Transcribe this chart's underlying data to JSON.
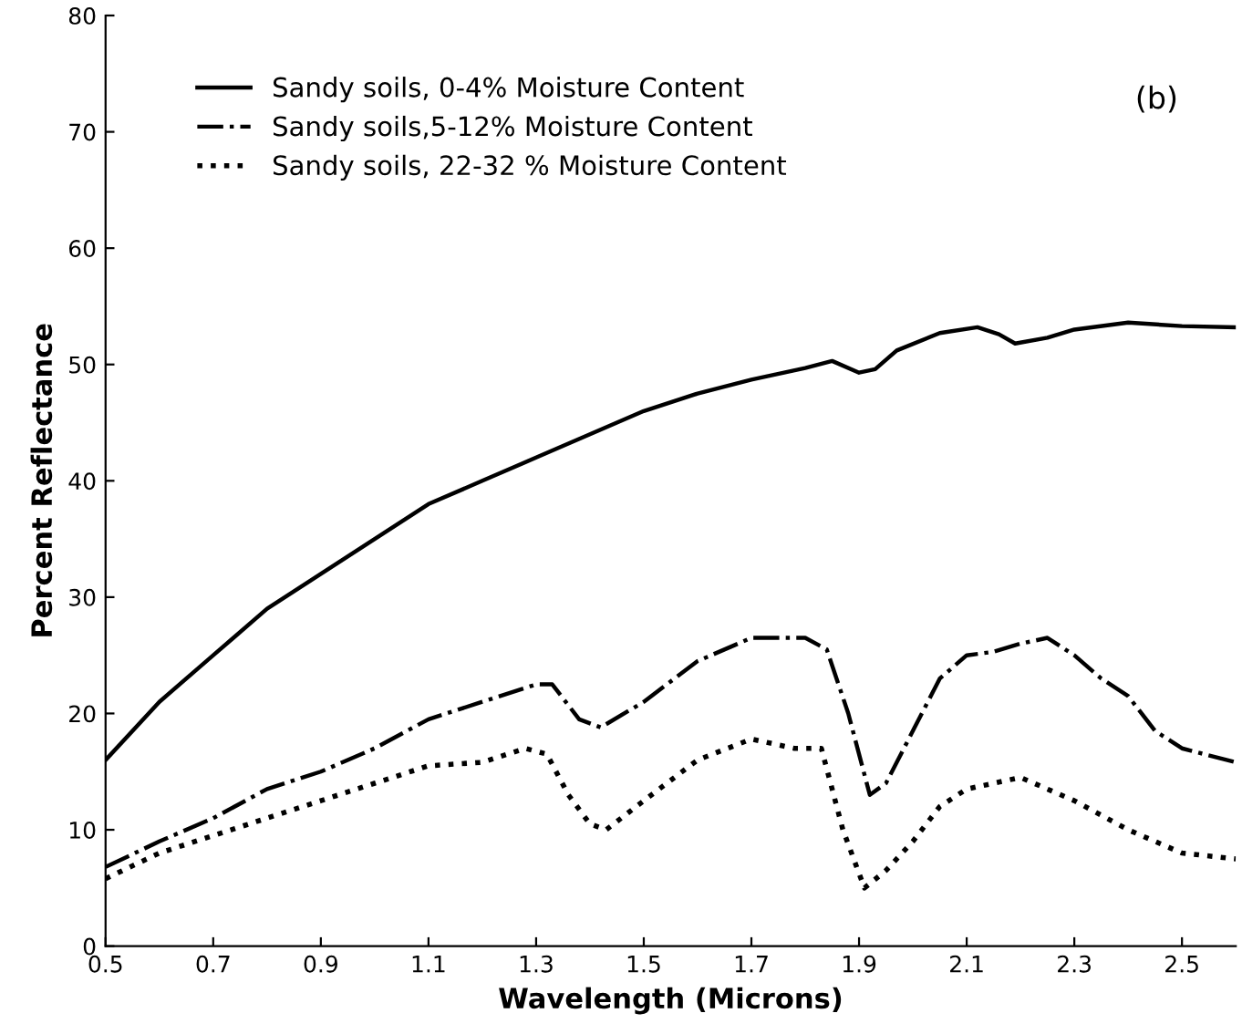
{
  "chart_data": {
    "type": "line",
    "xlabel": "Wavelength (Microns)",
    "ylabel": "Percent Reflectance",
    "annotations": [
      "(b)"
    ],
    "xlim": [
      0.5,
      2.6
    ],
    "xticks": [
      0.5,
      0.7,
      0.9,
      1.1,
      1.3,
      1.5,
      1.7,
      1.9,
      2.1,
      2.3,
      2.5
    ],
    "ylim": [
      0,
      80
    ],
    "yticks": [
      0,
      10,
      20,
      30,
      40,
      50,
      60,
      70,
      80
    ],
    "grid": false,
    "legend": "top left",
    "marker": "none",
    "series": [
      {
        "name": "Sandy soils, 0-4% Moisture Content",
        "color": "#000000",
        "line_style": "solid",
        "x": [
          0.5,
          0.6,
          0.7,
          0.8,
          0.9,
          1.0,
          1.1,
          1.2,
          1.3,
          1.4,
          1.5,
          1.6,
          1.7,
          1.8,
          1.85,
          1.9,
          1.93,
          1.97,
          2.05,
          2.12,
          2.16,
          2.19,
          2.25,
          2.3,
          2.4,
          2.5,
          2.6
        ],
        "values": [
          16,
          21,
          25,
          29,
          32,
          35,
          38,
          40,
          42,
          44,
          46,
          47.5,
          48.7,
          49.7,
          50.3,
          49.3,
          49.6,
          51.2,
          52.7,
          53.2,
          52.6,
          51.8,
          52.3,
          53,
          53.6,
          53.3,
          53.2
        ]
      },
      {
        "name": "Sandy soils,5-12% Moisture Content",
        "color": "#000000",
        "line_style": "dashdot",
        "x": [
          0.5,
          0.6,
          0.7,
          0.8,
          0.9,
          1.0,
          1.1,
          1.2,
          1.3,
          1.33,
          1.38,
          1.42,
          1.5,
          1.6,
          1.7,
          1.8,
          1.84,
          1.88,
          1.92,
          1.95,
          2.0,
          2.05,
          2.1,
          2.15,
          2.2,
          2.25,
          2.3,
          2.35,
          2.4,
          2.45,
          2.5,
          2.6
        ],
        "values": [
          6.8,
          9,
          11,
          13.5,
          15,
          17,
          19.5,
          21,
          22.5,
          22.5,
          19.5,
          18.8,
          21,
          24.5,
          26.5,
          26.5,
          25.5,
          20,
          13,
          14,
          18.5,
          23,
          25,
          25.3,
          26,
          26.5,
          25,
          23,
          21.5,
          18.5,
          17,
          15.8
        ]
      },
      {
        "name": "Sandy soils, 22-32 % Moisture Content",
        "color": "#000000",
        "line_style": "dotted",
        "x": [
          0.5,
          0.6,
          0.7,
          0.8,
          0.9,
          1.0,
          1.1,
          1.2,
          1.28,
          1.32,
          1.36,
          1.4,
          1.43,
          1.5,
          1.6,
          1.7,
          1.78,
          1.83,
          1.87,
          1.91,
          1.95,
          2.0,
          2.05,
          2.1,
          2.2,
          2.3,
          2.4,
          2.5,
          2.6
        ],
        "values": [
          5.8,
          8,
          9.5,
          11,
          12.5,
          14,
          15.5,
          15.8,
          17,
          16.5,
          13,
          10.5,
          10,
          12.5,
          16,
          17.8,
          17,
          17,
          10,
          5,
          6.5,
          9,
          12,
          13.5,
          14.5,
          12.5,
          10,
          8,
          7.5
        ]
      }
    ]
  }
}
